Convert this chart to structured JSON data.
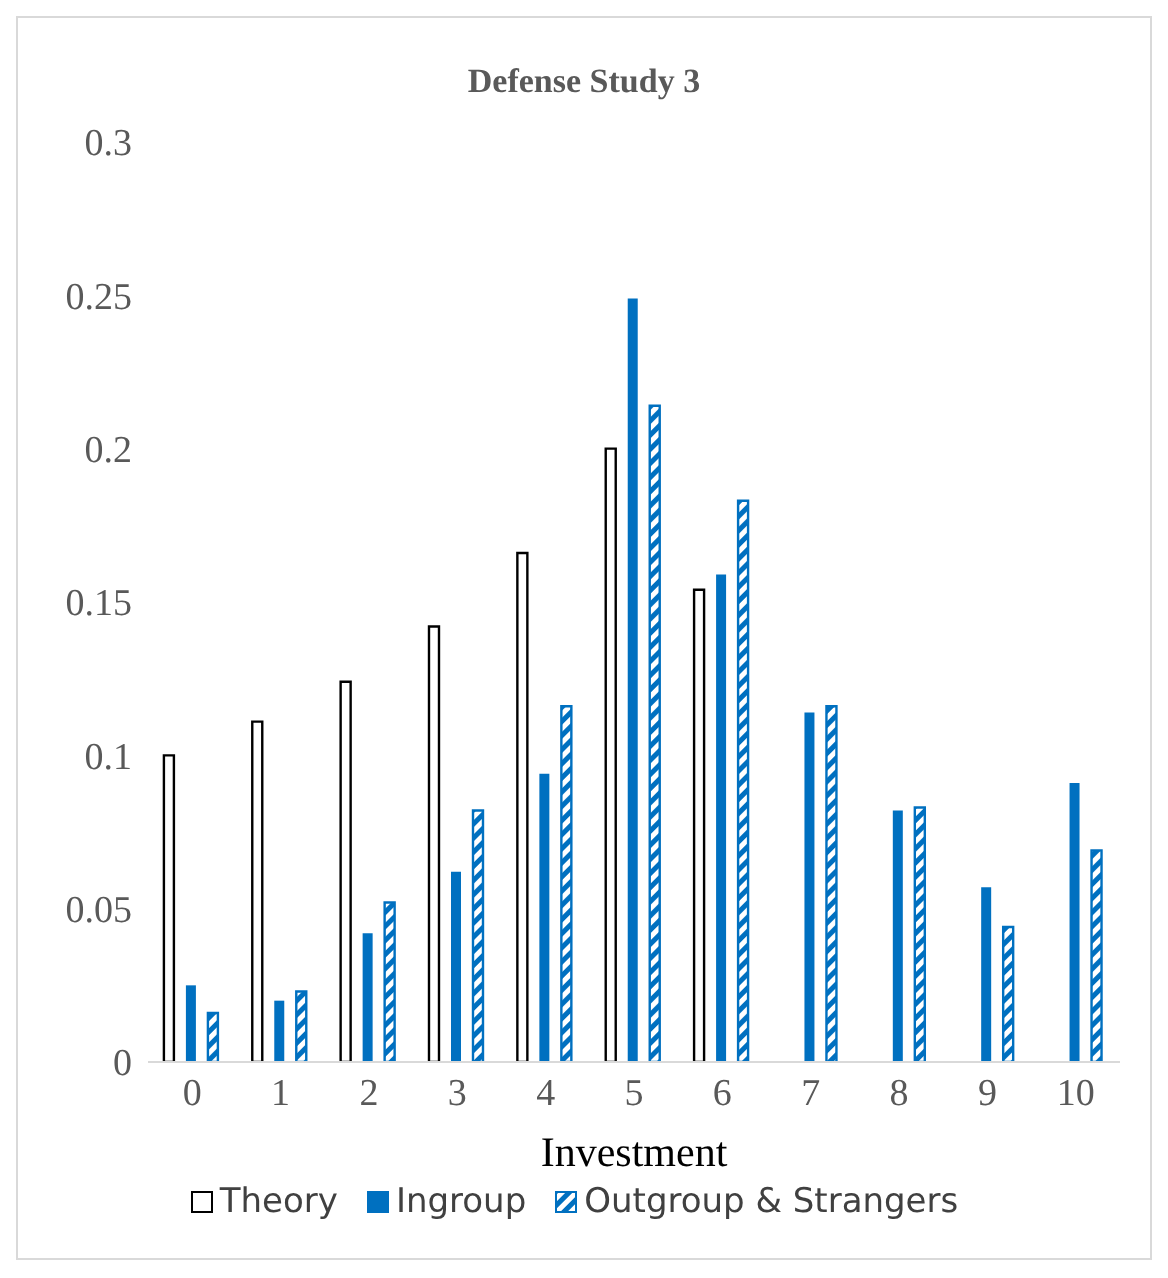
{
  "chart_data": {
    "type": "bar",
    "title": "Defense Study 3",
    "xlabel": "Investment",
    "categories": [
      "0",
      "1",
      "2",
      "3",
      "4",
      "5",
      "6",
      "7",
      "8",
      "9",
      "10"
    ],
    "series": [
      {
        "name": "Theory",
        "color": "#ffffff",
        "values": [
          0.1,
          0.111,
          0.124,
          0.142,
          0.166,
          0.2,
          0.154,
          null,
          null,
          null,
          null
        ]
      },
      {
        "name": "Ingroup",
        "color": "#0070c0",
        "values": [
          0.025,
          0.02,
          0.042,
          0.062,
          0.094,
          0.249,
          0.159,
          0.114,
          0.082,
          0.057,
          0.091
        ]
      },
      {
        "name": "Outgroup & Strangers",
        "color": "#0070c0",
        "values": [
          0.016,
          0.023,
          0.052,
          0.082,
          0.116,
          0.214,
          0.183,
          0.116,
          0.083,
          0.044,
          0.069
        ]
      }
    ],
    "ylim": [
      0,
      0.3
    ],
    "yticks": [
      0,
      0.05,
      0.1,
      0.15,
      0.2,
      0.25,
      0.3
    ],
    "grid": false,
    "legend": "bottom"
  }
}
